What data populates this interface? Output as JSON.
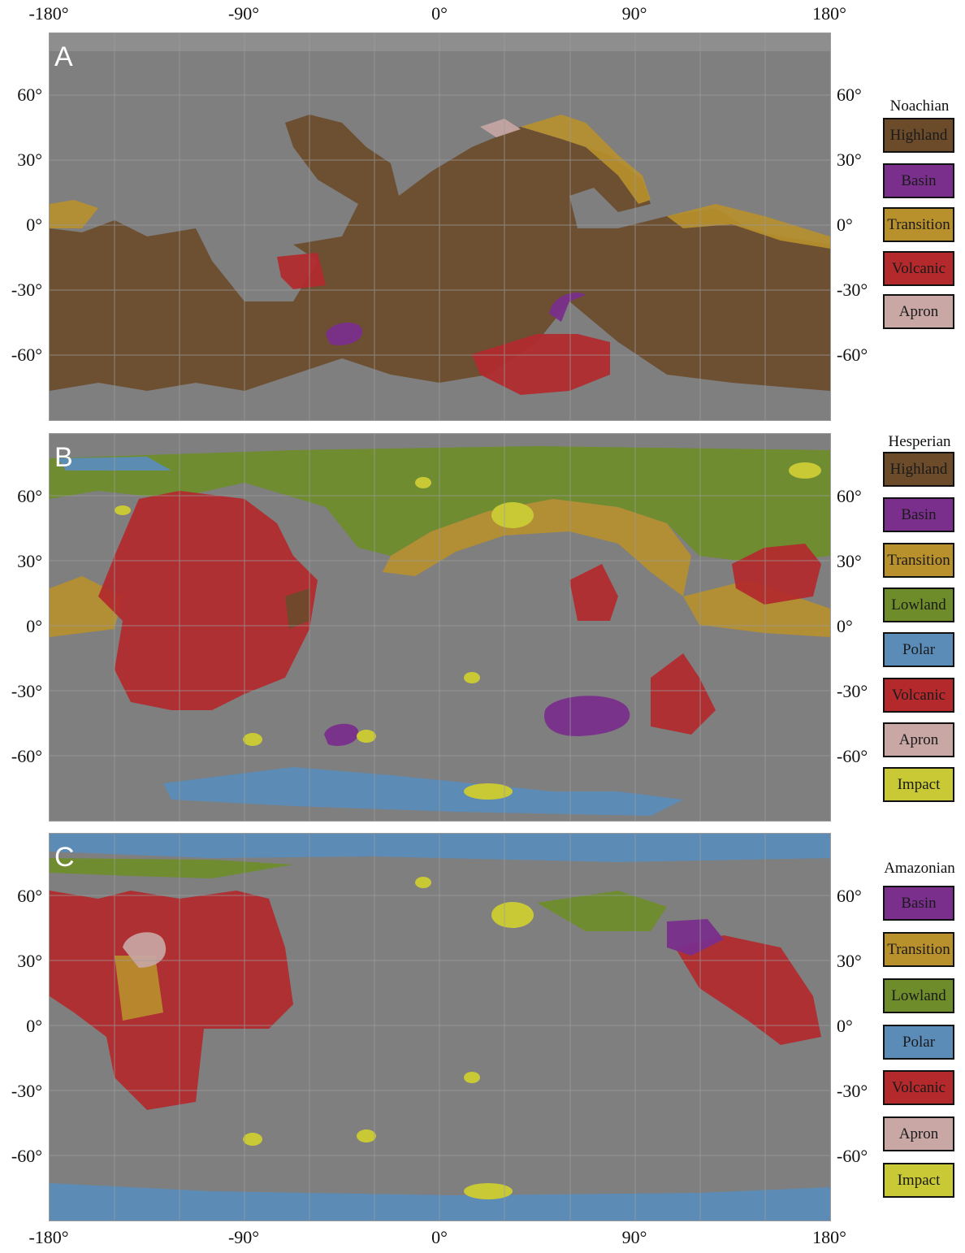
{
  "axes": {
    "lon_labels": [
      "-180°",
      "-90°",
      "0°",
      "90°",
      "180°"
    ],
    "lat_labels": [
      "60°",
      "30°",
      "0°",
      "-30°",
      "-60°"
    ]
  },
  "panels": [
    {
      "letter": "A",
      "legend_title": "Noachian",
      "legend": [
        {
          "label": "Highland",
          "color": "#6b4b2a"
        },
        {
          "label": "Basin",
          "color": "#7a2f8c"
        },
        {
          "label": "Transition",
          "color": "#b8902c"
        },
        {
          "label": "Volcanic",
          "color": "#b3292c"
        },
        {
          "label": "Apron",
          "color": "#c8a7a4"
        }
      ]
    },
    {
      "letter": "B",
      "legend_title": "Hesperian",
      "legend": [
        {
          "label": "Highland",
          "color": "#6b4b2a"
        },
        {
          "label": "Basin",
          "color": "#7a2f8c"
        },
        {
          "label": "Transition",
          "color": "#b8902c"
        },
        {
          "label": "Lowland",
          "color": "#6e8d2a"
        },
        {
          "label": "Polar",
          "color": "#5b8cb8"
        },
        {
          "label": "Volcanic",
          "color": "#b3292c"
        },
        {
          "label": "Apron",
          "color": "#c8a7a4"
        },
        {
          "label": "Impact",
          "color": "#c9c935"
        }
      ]
    },
    {
      "letter": "C",
      "legend_title": "Amazonian",
      "legend": [
        {
          "label": "Basin",
          "color": "#7a2f8c"
        },
        {
          "label": "Transition",
          "color": "#b8902c"
        },
        {
          "label": "Lowland",
          "color": "#6e8d2a"
        },
        {
          "label": "Polar",
          "color": "#5b8cb8"
        },
        {
          "label": "Volcanic",
          "color": "#b3292c"
        },
        {
          "label": "Apron",
          "color": "#c8a7a4"
        },
        {
          "label": "Impact",
          "color": "#c9c935"
        }
      ]
    }
  ],
  "colors": {
    "terrain": "#7f7f7f",
    "grid": "#9c9c9c"
  }
}
